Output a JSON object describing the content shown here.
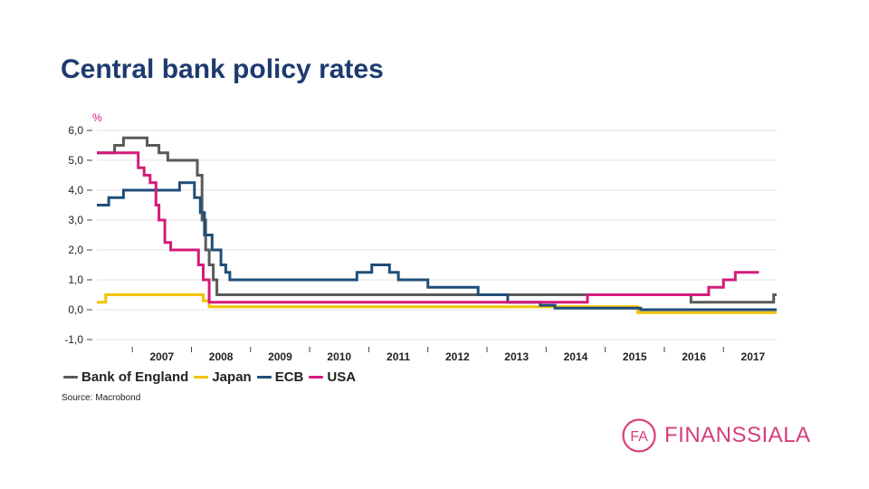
{
  "slide": {
    "title": "Central bank policy rates",
    "source": "Source: Macrobond"
  },
  "brand": {
    "logo_mark_text": "FA",
    "logo_text": "FINANSSIALA",
    "color": "#d63e7c"
  },
  "chart_data": {
    "type": "line",
    "title": "Central bank policy rates",
    "ylabel": "%",
    "xlabel": "",
    "ylim": [
      -1.0,
      6.0
    ],
    "xlim": [
      2006.4,
      2017.9
    ],
    "y_ticks": [
      6.0,
      5.0,
      4.0,
      3.0,
      2.0,
      1.0,
      0.0,
      -1.0
    ],
    "y_tick_labels": [
      "6,0",
      "5,0",
      "4,0",
      "3,0",
      "2,0",
      "1,0",
      "0,0",
      "-1,0"
    ],
    "x_tick_labels": [
      "2007",
      "2008",
      "2009",
      "2010",
      "2011",
      "2012",
      "2013",
      "2014",
      "2015",
      "2016",
      "2017"
    ],
    "x_tick_values": [
      2007,
      2008,
      2009,
      2010,
      2011,
      2012,
      2013,
      2014,
      2015,
      2016,
      2017
    ],
    "grid": true,
    "legend_position": "bottom-left",
    "series": [
      {
        "name": "Bank of England",
        "color": "#5a5a5a",
        "step_points": [
          [
            2006.4,
            5.25
          ],
          [
            2006.7,
            5.25
          ],
          [
            2006.7,
            5.5
          ],
          [
            2006.85,
            5.5
          ],
          [
            2006.85,
            5.75
          ],
          [
            2007.25,
            5.75
          ],
          [
            2007.25,
            5.5
          ],
          [
            2007.45,
            5.5
          ],
          [
            2007.45,
            5.25
          ],
          [
            2007.6,
            5.25
          ],
          [
            2007.6,
            5.0
          ],
          [
            2008.1,
            5.0
          ],
          [
            2008.1,
            4.5
          ],
          [
            2008.18,
            4.5
          ],
          [
            2008.18,
            3.0
          ],
          [
            2008.24,
            3.0
          ],
          [
            2008.24,
            2.0
          ],
          [
            2008.3,
            2.0
          ],
          [
            2008.3,
            1.5
          ],
          [
            2008.37,
            1.5
          ],
          [
            2008.37,
            1.0
          ],
          [
            2008.43,
            1.0
          ],
          [
            2008.43,
            0.5
          ],
          [
            2016.45,
            0.5
          ],
          [
            2016.45,
            0.25
          ],
          [
            2017.85,
            0.25
          ],
          [
            2017.85,
            0.5
          ],
          [
            2017.9,
            0.5
          ]
        ]
      },
      {
        "name": "Japan",
        "color": "#f0c400",
        "step_points": [
          [
            2006.4,
            0.25
          ],
          [
            2006.55,
            0.25
          ],
          [
            2006.55,
            0.5
          ],
          [
            2008.2,
            0.5
          ],
          [
            2008.2,
            0.3
          ],
          [
            2008.3,
            0.3
          ],
          [
            2008.3,
            0.1
          ],
          [
            2015.55,
            0.1
          ],
          [
            2015.55,
            -0.1
          ],
          [
            2017.9,
            -0.1
          ]
        ]
      },
      {
        "name": "ECB",
        "color": "#1f4e79",
        "step_points": [
          [
            2006.4,
            3.5
          ],
          [
            2006.6,
            3.5
          ],
          [
            2006.6,
            3.75
          ],
          [
            2006.85,
            3.75
          ],
          [
            2006.85,
            4.0
          ],
          [
            2007.8,
            4.0
          ],
          [
            2007.8,
            4.25
          ],
          [
            2008.05,
            4.25
          ],
          [
            2008.05,
            3.75
          ],
          [
            2008.15,
            3.75
          ],
          [
            2008.15,
            3.25
          ],
          [
            2008.22,
            3.25
          ],
          [
            2008.22,
            2.5
          ],
          [
            2008.35,
            2.5
          ],
          [
            2008.35,
            2.0
          ],
          [
            2008.5,
            2.0
          ],
          [
            2008.5,
            1.5
          ],
          [
            2008.58,
            1.5
          ],
          [
            2008.58,
            1.25
          ],
          [
            2008.65,
            1.25
          ],
          [
            2008.65,
            1.0
          ],
          [
            2010.8,
            1.0
          ],
          [
            2010.8,
            1.25
          ],
          [
            2011.05,
            1.25
          ],
          [
            2011.05,
            1.5
          ],
          [
            2011.35,
            1.5
          ],
          [
            2011.35,
            1.25
          ],
          [
            2011.5,
            1.25
          ],
          [
            2011.5,
            1.0
          ],
          [
            2012.0,
            1.0
          ],
          [
            2012.0,
            0.75
          ],
          [
            2012.85,
            0.75
          ],
          [
            2012.85,
            0.5
          ],
          [
            2013.35,
            0.5
          ],
          [
            2013.35,
            0.25
          ],
          [
            2013.9,
            0.25
          ],
          [
            2013.9,
            0.15
          ],
          [
            2014.15,
            0.15
          ],
          [
            2014.15,
            0.05
          ],
          [
            2015.6,
            0.05
          ],
          [
            2015.6,
            0.0
          ],
          [
            2017.9,
            0.0
          ]
        ]
      },
      {
        "name": "USA",
        "color": "#d41b7c",
        "step_points": [
          [
            2006.4,
            5.25
          ],
          [
            2007.1,
            5.25
          ],
          [
            2007.1,
            4.75
          ],
          [
            2007.2,
            4.75
          ],
          [
            2007.2,
            4.5
          ],
          [
            2007.3,
            4.5
          ],
          [
            2007.3,
            4.25
          ],
          [
            2007.4,
            4.25
          ],
          [
            2007.4,
            3.5
          ],
          [
            2007.45,
            3.5
          ],
          [
            2007.45,
            3.0
          ],
          [
            2007.55,
            3.0
          ],
          [
            2007.55,
            2.25
          ],
          [
            2007.65,
            2.25
          ],
          [
            2007.65,
            2.0
          ],
          [
            2008.12,
            2.0
          ],
          [
            2008.12,
            1.5
          ],
          [
            2008.2,
            1.5
          ],
          [
            2008.2,
            1.0
          ],
          [
            2008.3,
            1.0
          ],
          [
            2008.3,
            0.25
          ],
          [
            2014.7,
            0.25
          ],
          [
            2014.7,
            0.5
          ],
          [
            2016.75,
            0.5
          ],
          [
            2016.75,
            0.75
          ],
          [
            2017.0,
            0.75
          ],
          [
            2017.0,
            1.0
          ],
          [
            2017.2,
            1.0
          ],
          [
            2017.2,
            1.25
          ],
          [
            2017.6,
            1.25
          ]
        ]
      }
    ]
  }
}
